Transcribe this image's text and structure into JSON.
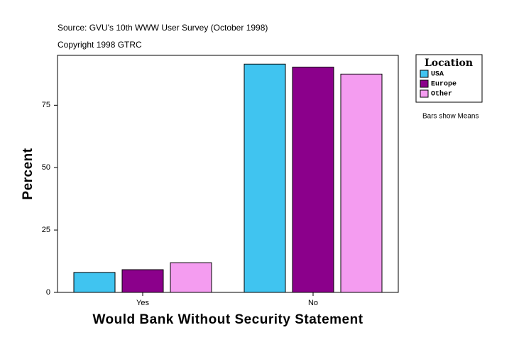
{
  "chart_data": {
    "type": "bar",
    "title": "Source: GVU's 10th WWW User Survey (October 1998)",
    "subtitle": "Copyright 1998 GTRC",
    "x_label": "Would Bank Without Security Statement",
    "y_label": "Percent",
    "legend_title": "Location",
    "annotation": "Bars show Means",
    "categories": [
      "Yes",
      "No"
    ],
    "series": [
      {
        "name": "USA",
        "color": "#40c4f0",
        "values": [
          8.0,
          91.5
        ]
      },
      {
        "name": "Europe",
        "color": "#8b008b",
        "values": [
          9.1,
          90.3
        ]
      },
      {
        "name": "Other",
        "color": "#f49cf0",
        "values": [
          11.9,
          87.5
        ]
      }
    ],
    "ylim": [
      0,
      95
    ],
    "yticks": [
      0,
      25,
      50,
      75
    ]
  }
}
